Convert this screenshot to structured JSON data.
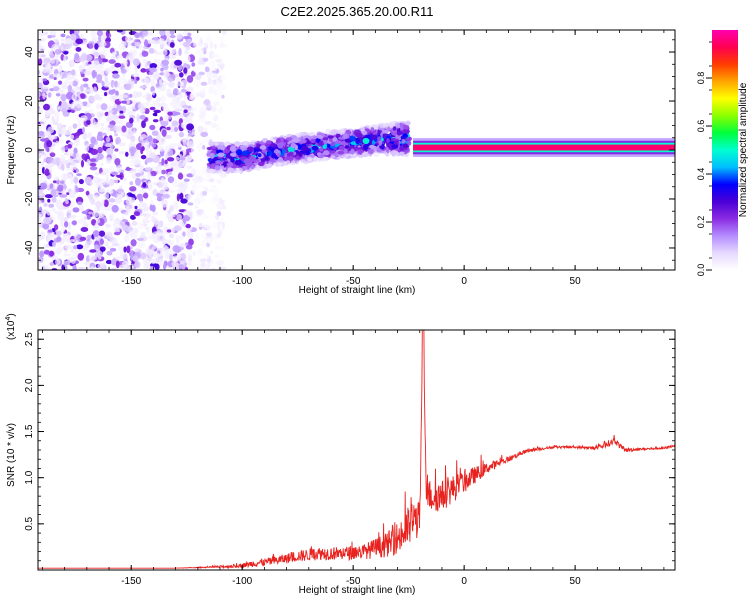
{
  "title": "C2E2.2025.365.20.00.R11",
  "chart_data": [
    {
      "type": "heatmap",
      "xlabel": "Height of straight line (km)",
      "ylabel": "Frequency (Hz)",
      "xlim": [
        -192,
        95
      ],
      "ylim": [
        -49,
        49
      ],
      "x_ticks": [
        -150,
        -100,
        -50,
        0,
        50
      ],
      "y_ticks": [
        -40,
        -20,
        0,
        20,
        40
      ],
      "grid": false,
      "colorbar": {
        "label": "Normalized spectral amplitude",
        "range": [
          0,
          1
        ],
        "ticks": [
          0.0,
          0.2,
          0.4,
          0.6,
          0.8
        ],
        "colors": [
          "#ffffff",
          "#e6d9ff",
          "#b48cff",
          "#8a2be2",
          "#4a00d6",
          "#0000ff",
          "#00bfff",
          "#00ffd0",
          "#00ff3c",
          "#8cff00",
          "#ffff00",
          "#ffa500",
          "#ff3c00",
          "#ff0050",
          "#ff00b0"
        ]
      },
      "features": [
        {
          "region": "scattered noise",
          "x_range": [
            -192,
            -122
          ],
          "freq_range": [
            -49,
            49
          ],
          "amplitude": 0.1
        },
        {
          "region": "sparse noise",
          "x_range": [
            -122,
            -108
          ],
          "freq_range": [
            -49,
            49
          ],
          "amplitude": 0.03
        },
        {
          "region": "main band",
          "x": [
            -115,
            -100,
            -80,
            -60,
            -40,
            -25
          ],
          "center_freq": [
            -3,
            -3,
            0,
            2,
            4,
            5
          ],
          "half_width": [
            4,
            4,
            4,
            4,
            4,
            5
          ],
          "amplitude": 0.4
        },
        {
          "region": "flat line",
          "x_range": [
            -23,
            95
          ],
          "center_freq": 1,
          "half_width": 1.2,
          "amplitude": 0.95
        }
      ]
    },
    {
      "type": "line",
      "xlabel": "Height of straight line (km)",
      "ylabel": "SNR (10 * v/v)",
      "multiplier_label": "(x10",
      "multiplier_exp": "4",
      "multiplier_close": ")",
      "xlim": [
        -192,
        95
      ],
      "ylim": [
        0,
        2.6
      ],
      "x_ticks": [
        -150,
        -100,
        -50,
        0,
        50
      ],
      "y_ticks": [
        0.5,
        1.0,
        1.5,
        2.0,
        2.5
      ],
      "grid": false,
      "color": "#e8221e",
      "series": [
        {
          "x": [
            -192,
            -160,
            -130,
            -115,
            -105,
            -100,
            -95,
            -85,
            -75,
            -65,
            -55,
            -45,
            -35,
            -28,
            -24,
            -22,
            -20,
            -18.5,
            -17,
            -15,
            -10,
            -5,
            0,
            5,
            10,
            15,
            20,
            25,
            30,
            40,
            50,
            60,
            65,
            68,
            72,
            80,
            90,
            95
          ],
          "values": [
            0.02,
            0.02,
            0.02,
            0.03,
            0.04,
            0.05,
            0.07,
            0.1,
            0.15,
            0.18,
            0.18,
            0.2,
            0.27,
            0.38,
            0.5,
            0.55,
            0.55,
            2.6,
            0.85,
            0.8,
            0.8,
            0.88,
            0.95,
            1.03,
            1.1,
            1.15,
            1.2,
            1.26,
            1.3,
            1.33,
            1.33,
            1.32,
            1.37,
            1.4,
            1.3,
            1.31,
            1.32,
            1.35
          ],
          "noise": [
            0.0,
            0.0,
            0.0,
            0.01,
            0.03,
            0.04,
            0.06,
            0.08,
            0.1,
            0.12,
            0.12,
            0.14,
            0.22,
            0.32,
            0.4,
            0.4,
            0.3,
            0.0,
            0.25,
            0.3,
            0.28,
            0.25,
            0.2,
            0.15,
            0.1,
            0.07,
            0.05,
            0.04,
            0.03,
            0.02,
            0.02,
            0.03,
            0.06,
            0.06,
            0.04,
            0.02,
            0.02,
            0.02
          ]
        }
      ]
    }
  ]
}
